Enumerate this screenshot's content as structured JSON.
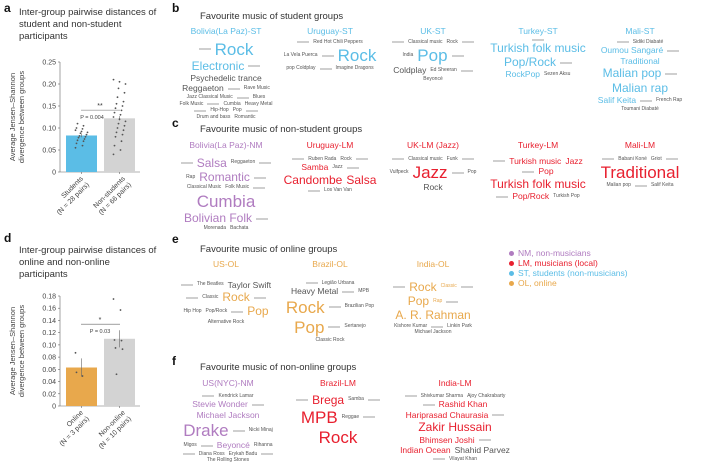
{
  "colors": {
    "ST": "#5bbde6",
    "LM": "#e8202f",
    "NM": "#b07cc0",
    "OL": "#e8a84c",
    "nonstudent_bar": "#d3d3d3",
    "word_grey": "#555555"
  },
  "panel_a": {
    "label": "a",
    "title": "Inter-group pairwise distances of student and non-student participants"
  },
  "panel_d": {
    "label": "d",
    "title": "Inter-group pairwise distances of online and non-online participants"
  },
  "chart_data": [
    {
      "type": "bar",
      "ylabel": "Average Jensen–Shannon divergence between groups",
      "ylim": [
        0,
        0.25
      ],
      "yticks": [
        "0",
        "0.05",
        "0.10",
        "0.15",
        "0.20",
        "0.25"
      ],
      "categories": [
        "Students\n(N = 28 pairs)",
        "Non-students\n(N = 66 pairs)"
      ],
      "cat_line1": [
        "Students",
        "Non-students"
      ],
      "cat_line2": [
        "(N = 28 pairs)",
        "(N = 66 pairs)"
      ],
      "values": [
        0.083,
        0.122
      ],
      "errors": [
        0.004,
        0.005
      ],
      "bar_colors": [
        "#5bbde6",
        "#d3d3d3"
      ],
      "significance": {
        "stars": "**",
        "p_text": "P = 0.004"
      },
      "points": [
        [
          0.055,
          0.06,
          0.065,
          0.07,
          0.072,
          0.075,
          0.078,
          0.08,
          0.082,
          0.085,
          0.088,
          0.09,
          0.092,
          0.095,
          0.098,
          0.1,
          0.105,
          0.11
        ],
        [
          0.04,
          0.05,
          0.06,
          0.07,
          0.08,
          0.085,
          0.09,
          0.095,
          0.1,
          0.105,
          0.11,
          0.115,
          0.12,
          0.125,
          0.13,
          0.135,
          0.14,
          0.145,
          0.15,
          0.155,
          0.16,
          0.17,
          0.18,
          0.19,
          0.2,
          0.205,
          0.21
        ]
      ]
    },
    {
      "type": "bar",
      "ylabel": "Average Jensen–Shannon divergence between groups",
      "ylim": [
        0,
        0.18
      ],
      "yticks": [
        "0",
        "0.02",
        "0.04",
        "0.06",
        "0.08",
        "0.10",
        "0.12",
        "0.14",
        "0.16",
        "0.18"
      ],
      "categories": [
        "Online\n(N = 3 pairs)",
        "Non-online\n(N = 10 pairs)"
      ],
      "cat_line1": [
        "Online",
        "Non-online"
      ],
      "cat_line2": [
        "(N = 3 pairs)",
        "(N = 10 pairs)"
      ],
      "values": [
        0.063,
        0.11
      ],
      "errors": [
        0.015,
        0.014
      ],
      "bar_colors": [
        "#e8a84c",
        "#d3d3d3"
      ],
      "significance": {
        "stars": "*",
        "p_text": "P = 0.03"
      },
      "points": [
        [
          0.087,
          0.049,
          0.055
        ],
        [
          0.175,
          0.157,
          0.108,
          0.107,
          0.095,
          0.093,
          0.052
        ]
      ]
    }
  ],
  "panel_b": {
    "label": "b",
    "title": "Favourite music of student groups",
    "groups": [
      {
        "name": "Bolivia(La Paz)-ST",
        "type": "ST",
        "words": [
          [
            "Rock",
            4,
            1
          ],
          [
            "Electronic",
            3,
            1
          ],
          [
            "Psychedelic trance",
            2,
            0
          ],
          [
            "Reggaeton",
            2,
            0
          ],
          [
            "Rave Music",
            1,
            0
          ],
          [
            "Jazz Classical Music",
            1,
            0
          ],
          [
            "Blues",
            1,
            0
          ],
          [
            "Folk Music",
            1,
            0
          ],
          [
            "Cumbia",
            1,
            0
          ],
          [
            "Heavy Metal",
            1,
            0
          ],
          [
            "Hip-Hop",
            1,
            0
          ],
          [
            "Pop",
            1,
            0
          ],
          [
            "Drum and bass",
            1,
            0
          ],
          [
            "Romantic",
            1,
            0
          ]
        ]
      },
      {
        "name": "Uruguay-ST",
        "type": "ST",
        "words": [
          [
            "Red Hot Chili Peppers",
            1,
            0
          ],
          [
            "La Vela Puerca",
            1,
            0
          ],
          [
            "Rock",
            4,
            1
          ],
          [
            "pop Coldplay",
            1,
            0
          ],
          [
            "Imagine Dragons",
            1,
            0
          ]
        ]
      },
      {
        "name": "UK-ST",
        "type": "ST",
        "words": [
          [
            "Classical music",
            1,
            0
          ],
          [
            "Rock",
            1,
            0
          ],
          [
            "India",
            1,
            0
          ],
          [
            "Pop",
            4,
            1
          ],
          [
            "Coldplay",
            2,
            0
          ],
          [
            "Ed Sheeran",
            1,
            0
          ],
          [
            "Beyoncé",
            1,
            0
          ]
        ]
      },
      {
        "name": "Turkey-ST",
        "type": "ST",
        "words": [
          [
            "Turkish folk music",
            3,
            1
          ],
          [
            "Pop/Rock",
            3,
            1
          ],
          [
            "RockPop",
            2,
            1
          ],
          [
            "Sezen Aksu",
            1,
            0
          ]
        ]
      },
      {
        "name": "Mali-ST",
        "type": "ST",
        "words": [
          [
            "Sidiki Diabaté",
            1,
            0
          ],
          [
            "Oumou Sangaré",
            2,
            1
          ],
          [
            "Traditional",
            2,
            1
          ],
          [
            "Malian pop",
            3,
            1
          ],
          [
            "Malian rap",
            3,
            1
          ],
          [
            "Salif Keita",
            2,
            1
          ],
          [
            "French Rap",
            1,
            0
          ],
          [
            "Toumani Diabaté",
            1,
            0
          ]
        ]
      }
    ]
  },
  "panel_c": {
    "label": "c",
    "title": "Favourite music of non-student groups",
    "groups": [
      {
        "name": "Bolivia(La Paz)-NM",
        "type": "NM",
        "words": [
          [
            "Salsa",
            3,
            1
          ],
          [
            "Reggaeton",
            1,
            0
          ],
          [
            "Rap",
            1,
            0
          ],
          [
            "Romantic",
            3,
            1
          ],
          [
            "Classical Music",
            1,
            0
          ],
          [
            "Folk Music",
            1,
            0
          ],
          [
            "Cumbia",
            4,
            1
          ],
          [
            "Bolivian Folk",
            3,
            1
          ],
          [
            "Morenada",
            1,
            0
          ],
          [
            "Bachata",
            1,
            0
          ]
        ]
      },
      {
        "name": "Uruguay-LM",
        "type": "LM",
        "words": [
          [
            "Ruben Rada",
            1,
            0
          ],
          [
            "Rock",
            1,
            0
          ],
          [
            "Samba",
            2,
            1
          ],
          [
            "Jazz",
            1,
            0
          ],
          [
            "Candombe",
            3,
            1
          ],
          [
            "Salsa",
            3,
            1
          ],
          [
            "Los Van Van",
            1,
            0
          ]
        ]
      },
      {
        "name": "UK-LM (Jazz)",
        "type": "LM",
        "words": [
          [
            "Classical music",
            1,
            0
          ],
          [
            "Funk",
            1,
            0
          ],
          [
            "Vulfpeck",
            1,
            0
          ],
          [
            "Jazz",
            4,
            1
          ],
          [
            "Pop",
            1,
            0
          ],
          [
            "Rock",
            2,
            0
          ]
        ]
      },
      {
        "name": "Turkey-LM",
        "type": "LM",
        "words": [
          [
            "Turkish music",
            2,
            1
          ],
          [
            "Jazz",
            2,
            1
          ],
          [
            "Pop",
            2,
            1
          ],
          [
            "Turkish folk music",
            3,
            1
          ],
          [
            "Pop/Rock",
            2,
            1
          ],
          [
            "Turkish Pop",
            1,
            0
          ]
        ]
      },
      {
        "name": "Mali-LM",
        "type": "LM",
        "words": [
          [
            "Babani Koné",
            1,
            0
          ],
          [
            "Griot",
            1,
            0
          ],
          [
            "Traditional",
            4,
            1
          ],
          [
            "Malian pop",
            1,
            0
          ],
          [
            "Salif Keita",
            1,
            0
          ]
        ]
      }
    ]
  },
  "panel_e": {
    "label": "e",
    "title": "Favourite music of online groups",
    "groups": [
      {
        "name": "US-OL",
        "type": "OL",
        "words": [
          [
            "The Beatles",
            1,
            0
          ],
          [
            "Taylor Swift",
            2,
            0
          ],
          [
            "Classic",
            1,
            0
          ],
          [
            "Rock",
            3,
            1
          ],
          [
            "Hip Hop",
            1,
            0
          ],
          [
            "Pop/Rock",
            1,
            0
          ],
          [
            "Pop",
            3,
            1
          ],
          [
            "Alternative Rock",
            1,
            0
          ]
        ]
      },
      {
        "name": "Brazil-OL",
        "type": "OL",
        "words": [
          [
            "Legião Urbana",
            1,
            0
          ],
          [
            "Heavy Metal",
            2,
            0
          ],
          [
            "MPB",
            1,
            0
          ],
          [
            "Rock",
            4,
            1
          ],
          [
            "Brazilian Pop",
            1,
            0
          ],
          [
            "Pop",
            4,
            1
          ],
          [
            "Sertanejo",
            1,
            0
          ],
          [
            "Classic Rock",
            1,
            0
          ]
        ]
      },
      {
        "name": "India-OL",
        "type": "OL",
        "words": [
          [
            "Rock",
            3,
            1
          ],
          [
            "Classic",
            1,
            1
          ],
          [
            "Pop",
            3,
            1
          ],
          [
            "Rap",
            1,
            1
          ],
          [
            "A. R. Rahman",
            3,
            1
          ],
          [
            "Kishore Kumar",
            1,
            0
          ],
          [
            "Linkin Park",
            1,
            0
          ],
          [
            "Michael Jackson",
            1,
            0
          ]
        ]
      }
    ]
  },
  "panel_f": {
    "label": "f",
    "title": "Favourite music of non-online groups",
    "groups": [
      {
        "name": "US(NYC)-NM",
        "type": "NM",
        "words": [
          [
            "Kendrick Lamar",
            1,
            0
          ],
          [
            "Stevie Wonder",
            2,
            1
          ],
          [
            "Michael Jackson",
            2,
            1
          ],
          [
            "Drake",
            4,
            1
          ],
          [
            "Nicki Minaj",
            1,
            0
          ],
          [
            "Migos",
            1,
            0
          ],
          [
            "Beyoncé",
            2,
            1
          ],
          [
            "Rihanna",
            1,
            0
          ],
          [
            "Diana Ross",
            1,
            0
          ],
          [
            "Erykah Badu",
            1,
            0
          ],
          [
            "The Rolling Stones",
            1,
            0
          ]
        ]
      },
      {
        "name": "Brazil-LM",
        "type": "LM",
        "words": [
          [
            "Brega",
            3,
            1
          ],
          [
            "Samba",
            1,
            0
          ],
          [
            "MPB",
            4,
            1
          ],
          [
            "Reggae",
            1,
            0
          ],
          [
            "Rock",
            4,
            1
          ]
        ]
      },
      {
        "name": "India-LM",
        "type": "LM",
        "words": [
          [
            "Shivkumar Sharma",
            1,
            0
          ],
          [
            "Ajoy Chakrabarty",
            1,
            0
          ],
          [
            "Rashid Khan",
            2,
            1
          ],
          [
            "Hariprasad Chaurasia",
            2,
            1
          ],
          [
            "Zakir Hussain",
            3,
            1
          ],
          [
            "Bhimsen Joshi",
            2,
            1
          ],
          [
            "Indian Ocean",
            2,
            1
          ],
          [
            "Shahid Parvez",
            2,
            0
          ],
          [
            "Vilayat Khan",
            1,
            0
          ]
        ]
      }
    ]
  },
  "legend": [
    {
      "key": "NM",
      "label": "NM, non-musicians"
    },
    {
      "key": "LM",
      "label": "LM, musicians (local)"
    },
    {
      "key": "ST",
      "label": "ST, students (non-musicians)"
    },
    {
      "key": "OL",
      "label": "OL, online"
    }
  ]
}
